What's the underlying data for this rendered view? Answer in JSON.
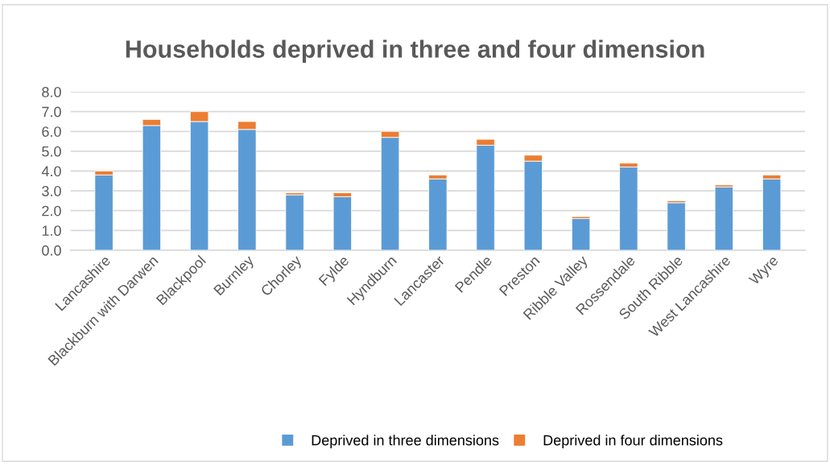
{
  "chart_data": {
    "type": "bar",
    "title": "Households deprived in three and four dimension",
    "categories": [
      "Lancashire",
      "Blackburn with Darwen",
      "Blackpool",
      "Burnley",
      "Chorley",
      "Fylde",
      "Hyndburn",
      "Lancaster",
      "Pendle",
      "Preston",
      "Ribble Valley",
      "Rossendale",
      "South Ribble",
      "West Lancashire",
      "Wyre"
    ],
    "series": [
      {
        "name": "Deprived in three dimensions",
        "color": "#5b9bd5",
        "values": [
          3.8,
          6.3,
          6.5,
          6.1,
          2.8,
          2.7,
          5.7,
          3.6,
          5.3,
          4.5,
          1.6,
          4.2,
          2.4,
          3.2,
          3.6
        ]
      },
      {
        "name": "Deprived in four dimensions",
        "color": "#ed7d31",
        "values": [
          0.2,
          0.3,
          0.5,
          0.4,
          0.1,
          0.2,
          0.3,
          0.2,
          0.3,
          0.3,
          0.1,
          0.2,
          0.1,
          0.1,
          0.2
        ]
      }
    ],
    "stacked": true,
    "ylim": [
      0,
      8
    ],
    "yticks": [
      {
        "value": 0,
        "label": "0.0"
      },
      {
        "value": 1,
        "label": "1.0"
      },
      {
        "value": 2,
        "label": "2.0"
      },
      {
        "value": 3,
        "label": "3.0"
      },
      {
        "value": 4,
        "label": "4.0"
      },
      {
        "value": 5,
        "label": "5.0"
      },
      {
        "value": 6,
        "label": "6.0"
      },
      {
        "value": 7,
        "label": "7.0"
      },
      {
        "value": 8,
        "label": "8.0"
      }
    ],
    "grid": "y",
    "legend": "bottom"
  }
}
